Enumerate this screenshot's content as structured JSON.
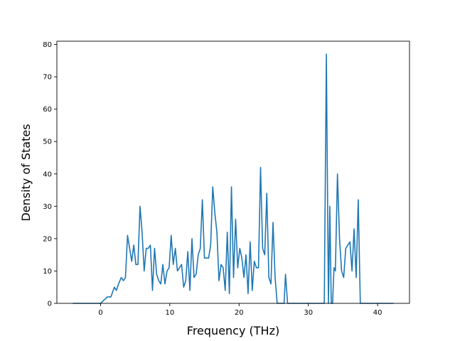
{
  "chart_data": {
    "type": "line",
    "title": "",
    "xlabel": "Frequency (THz)",
    "ylabel": "Density of States",
    "xlim": [
      -6.3,
      44.6
    ],
    "ylim": [
      0,
      81
    ],
    "xticks": [
      0,
      10,
      20,
      30,
      40
    ],
    "yticks": [
      0,
      10,
      20,
      30,
      40,
      50,
      60,
      70,
      80
    ],
    "grid": false,
    "legend": "none",
    "line_color": "#1f77b4",
    "series": [
      {
        "x": [
          -4.0,
          0.0,
          0.5,
          1.0,
          1.5,
          2.0,
          2.3,
          2.6,
          3.0,
          3.3,
          3.6,
          3.9,
          4.2,
          4.5,
          4.8,
          5.1,
          5.4,
          5.7,
          6.0,
          6.3,
          6.6,
          6.9,
          7.2,
          7.5,
          7.8,
          8.1,
          8.4,
          8.7,
          9.0,
          9.3,
          9.6,
          9.9,
          10.2,
          10.5,
          10.8,
          11.1,
          11.4,
          11.7,
          12.0,
          12.3,
          12.6,
          12.9,
          13.2,
          13.5,
          13.8,
          14.1,
          14.4,
          14.7,
          15.0,
          15.3,
          15.6,
          15.9,
          16.2,
          16.5,
          16.8,
          17.1,
          17.4,
          17.7,
          18.0,
          18.3,
          18.6,
          18.9,
          19.2,
          19.5,
          19.8,
          20.1,
          20.4,
          20.7,
          21.0,
          21.3,
          21.6,
          21.9,
          22.2,
          22.5,
          22.8,
          23.1,
          23.4,
          23.7,
          24.0,
          24.3,
          24.6,
          24.9,
          25.2,
          25.5,
          26.0,
          26.5,
          26.7,
          27.0,
          28.0,
          30.0,
          32.0,
          32.3,
          32.6,
          32.9,
          33.1,
          33.3,
          33.5,
          33.7,
          33.9,
          34.2,
          34.5,
          34.8,
          35.1,
          35.4,
          35.7,
          36.0,
          36.3,
          36.6,
          36.9,
          37.2,
          37.5,
          40.0,
          42.3
        ],
        "values": [
          0,
          0,
          1,
          2,
          2,
          5,
          4,
          6,
          8,
          7,
          8,
          21,
          17,
          13,
          18,
          12,
          12,
          30,
          22,
          10,
          17,
          17,
          18,
          4,
          17,
          9,
          7,
          6,
          12,
          6,
          10,
          11,
          21,
          12,
          17,
          10,
          11,
          12,
          5,
          7,
          16,
          4,
          20,
          8,
          9,
          15,
          17,
          32,
          14,
          14,
          14,
          18,
          36,
          28,
          22,
          7,
          12,
          11,
          4,
          22,
          3,
          36,
          8,
          26,
          11,
          17,
          14,
          8,
          15,
          3,
          19,
          4,
          13,
          11,
          11,
          42,
          17,
          15,
          34,
          8,
          6,
          25,
          8,
          0,
          0,
          0,
          9,
          0,
          0,
          0,
          0,
          0,
          77,
          0,
          30,
          0,
          0,
          11,
          10,
          40,
          20,
          10,
          8,
          17,
          18,
          19,
          10,
          23,
          8,
          32,
          0,
          0,
          0
        ]
      }
    ]
  }
}
